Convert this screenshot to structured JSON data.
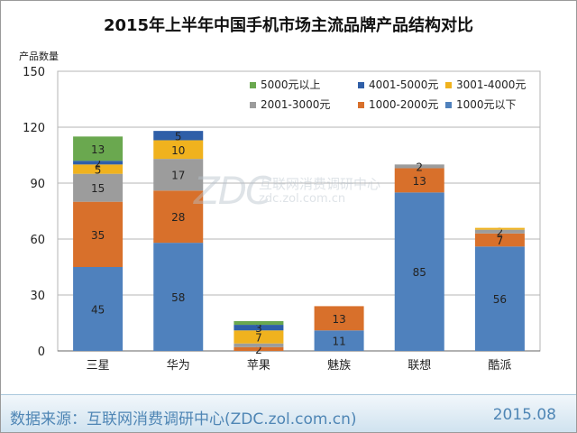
{
  "chart_data": {
    "type": "bar",
    "stacked": true,
    "title": "2015年上半年中国手机市场主流品牌产品结构对比",
    "ylabel": "产品数量",
    "xlabel": "",
    "ylim": [
      0,
      150
    ],
    "yticks": [
      0,
      30,
      60,
      90,
      120,
      150
    ],
    "grid": true,
    "legend_position": "top-right",
    "categories": [
      "三星",
      "华为",
      "苹果",
      "魅族",
      "联想",
      "酷派"
    ],
    "series": [
      {
        "name": "1000元以下",
        "color": "#4f81bd",
        "values": [
          45,
          58,
          0,
          11,
          85,
          56
        ]
      },
      {
        "name": "1000-2000元",
        "color": "#d8702b",
        "values": [
          35,
          28,
          2,
          13,
          13,
          7
        ]
      },
      {
        "name": "2001-3000元",
        "color": "#9c9c9c",
        "values": [
          15,
          17,
          2,
          0,
          2,
          2
        ]
      },
      {
        "name": "3001-4000元",
        "color": "#f0b21e",
        "values": [
          5,
          10,
          7,
          0,
          0,
          1
        ]
      },
      {
        "name": "4001-5000元",
        "color": "#2f5fa8",
        "values": [
          2,
          5,
          3,
          0,
          0,
          0
        ]
      },
      {
        "name": "5000元以上",
        "color": "#6aa84f",
        "values": [
          13,
          0,
          2,
          0,
          0,
          0
        ]
      }
    ],
    "data_labels": [
      [
        "45",
        "35",
        "15",
        "5",
        "2",
        "13"
      ],
      [
        "58",
        "28",
        "17",
        "10",
        "5",
        ""
      ],
      [
        "",
        "2",
        "",
        "7",
        "3",
        ""
      ],
      [
        "11",
        "13",
        "",
        "",
        "",
        ""
      ],
      [
        "85",
        "13",
        "2",
        "",
        "",
        ""
      ],
      [
        "56",
        "7",
        "2",
        "",
        "",
        ""
      ]
    ],
    "legend_order": [
      "5000元以上",
      "4001-5000元",
      "3001-4000元",
      "2001-3000元",
      "1000-2000元",
      "1000元以下"
    ]
  },
  "footer": {
    "source": "数据来源：互联网消费调研中心(ZDC.zol.com.cn)",
    "date": "2015.08"
  },
  "watermark": {
    "logo": "ZDC",
    "name": "互联网消费调研中心",
    "url": "zdc.zol.com.cn"
  }
}
